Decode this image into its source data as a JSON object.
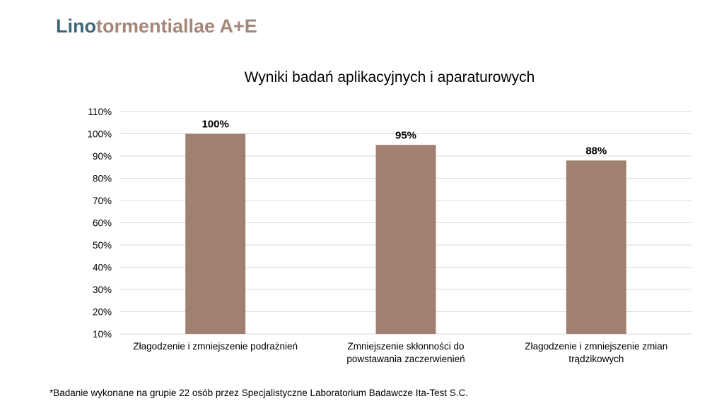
{
  "header": {
    "title_part1": "Lino",
    "title_part2": "tormentiallae A+E"
  },
  "colors": {
    "title_blue": "#3d6577",
    "title_brown": "#a3877a",
    "bar": "#a08070",
    "grid": "#d9d9d9"
  },
  "chart_data": {
    "type": "bar",
    "title": "Wyniki badań aplikacyjnych i aparaturowych",
    "xlabel": "",
    "ylabel": "",
    "categories": [
      [
        "Złagodzenie i zmniejszenie podrażnień"
      ],
      [
        "Zmniejszenie skłonności do",
        "powstawania zaczerwienień"
      ],
      [
        "Złagodzenie i zmniejszenie zmian",
        "trądzikowych"
      ]
    ],
    "values": [
      100,
      95,
      88
    ],
    "data_labels": [
      "100%",
      "95%",
      "88%"
    ],
    "ylim": [
      10,
      110
    ],
    "yticks": [
      10,
      20,
      30,
      40,
      50,
      60,
      70,
      80,
      90,
      100,
      110
    ],
    "ytick_suffix": "%",
    "grid": true,
    "legend": "none"
  },
  "footnote": "*Badanie wykonane na grupie 22 osób przez Specjalistyczne Laboratorium Badawcze Ita-Test S.C."
}
